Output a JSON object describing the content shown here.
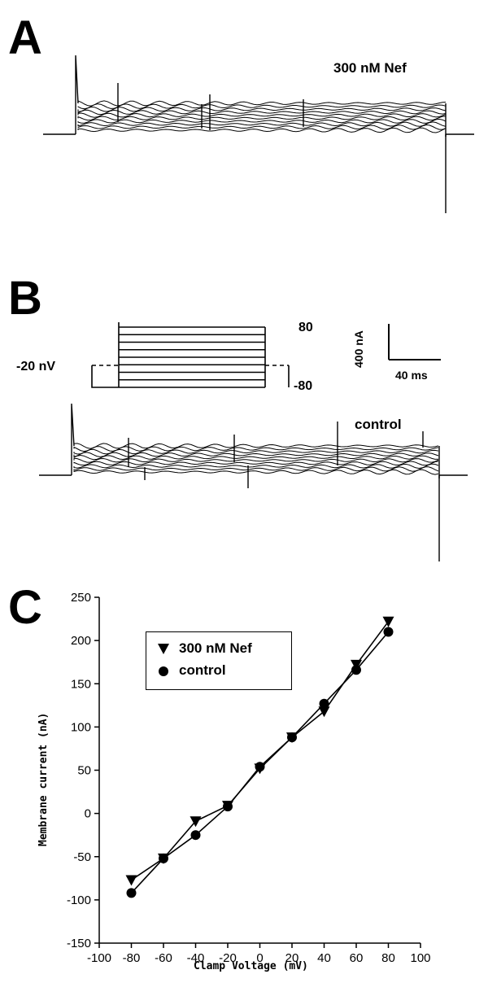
{
  "panels": {
    "a": {
      "letter": "A",
      "label": "300 nM Nef"
    },
    "b": {
      "letter": "B",
      "label": "control",
      "protocol": {
        "holding": "-20 nV",
        "top_step": "80",
        "bottom_step": "-80"
      },
      "scale_bar": {
        "current": "400 nA",
        "time": "40 ms"
      }
    },
    "c": {
      "letter": "C"
    }
  },
  "chart_data": {
    "type": "line",
    "title": "",
    "xlabel": "Clamp Voltage (mV)",
    "ylabel": "Membrane current (nA)",
    "xlim": [
      -100,
      100
    ],
    "ylim": [
      -150,
      250
    ],
    "x_ticks": [
      -100,
      -80,
      -60,
      -40,
      -20,
      0,
      20,
      40,
      60,
      80,
      100
    ],
    "y_ticks": [
      -150,
      -100,
      -50,
      0,
      50,
      100,
      150,
      200,
      250
    ],
    "legend": "top-left",
    "x": [
      -80,
      -60,
      -40,
      -20,
      0,
      20,
      40,
      60,
      80
    ],
    "series": [
      {
        "name": "300 nM Nef",
        "marker": "triangle-down",
        "values": [
          -77,
          -52,
          -9,
          9,
          52,
          88,
          118,
          172,
          222
        ]
      },
      {
        "name": "control",
        "marker": "circle",
        "values": [
          -92,
          -52,
          -25,
          8,
          54,
          88,
          127,
          166,
          210
        ]
      }
    ]
  },
  "colors": {
    "ink": "#000000",
    "background": "#ffffff"
  }
}
